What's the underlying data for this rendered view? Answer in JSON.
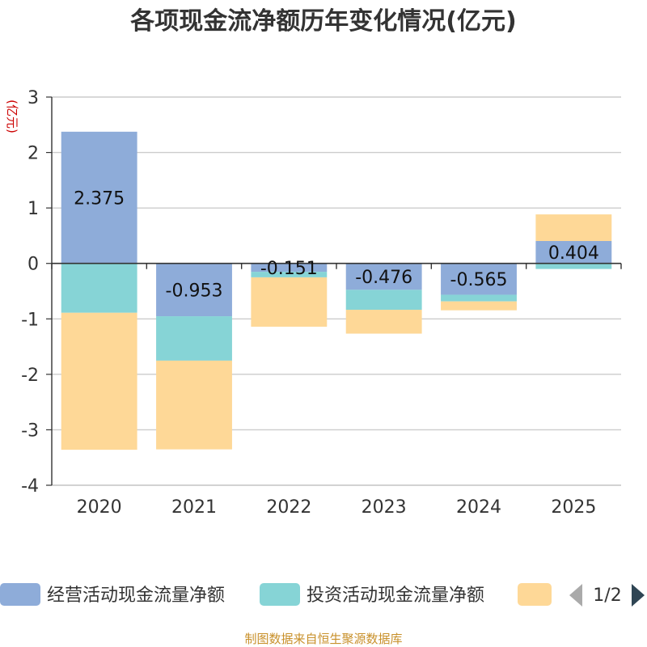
{
  "chart_data": {
    "type": "bar",
    "stacked": true,
    "title": "各项现金流净额历年变化情况(亿元)",
    "ylabel": "(亿元)",
    "ylim": [
      -4,
      3
    ],
    "yticks": [
      3,
      2,
      1,
      0,
      -1,
      -2,
      -3,
      -4
    ],
    "ytick_labels": [
      "3",
      "2",
      "1",
      "0",
      "-1",
      "-2",
      "-3",
      "-4"
    ],
    "categories": [
      "2020",
      "2021",
      "2022",
      "2023",
      "2024",
      "2025"
    ],
    "series": [
      {
        "name": "经营活动现金流量净额",
        "color": "#8eacd9",
        "values": [
          2.375,
          -0.953,
          -0.151,
          -0.476,
          -0.565,
          0.404
        ],
        "labels": [
          "2.375",
          "-0.953",
          "-0.151",
          "-0.476",
          "-0.565",
          "0.404"
        ]
      },
      {
        "name": "投资活动现金流量净额",
        "color": "#86d4d6",
        "values": [
          -0.89,
          -0.8,
          -0.1,
          -0.36,
          -0.12,
          -0.1
        ]
      },
      {
        "name": "",
        "color": "#fed897",
        "values": [
          -2.47,
          -1.6,
          -0.89,
          -0.43,
          -0.16,
          0.48
        ]
      }
    ],
    "legend": {
      "position": "bottom",
      "page": "1/2"
    },
    "grid": true
  },
  "footer": {
    "source": "制图数据来自恒生聚源数据库"
  }
}
